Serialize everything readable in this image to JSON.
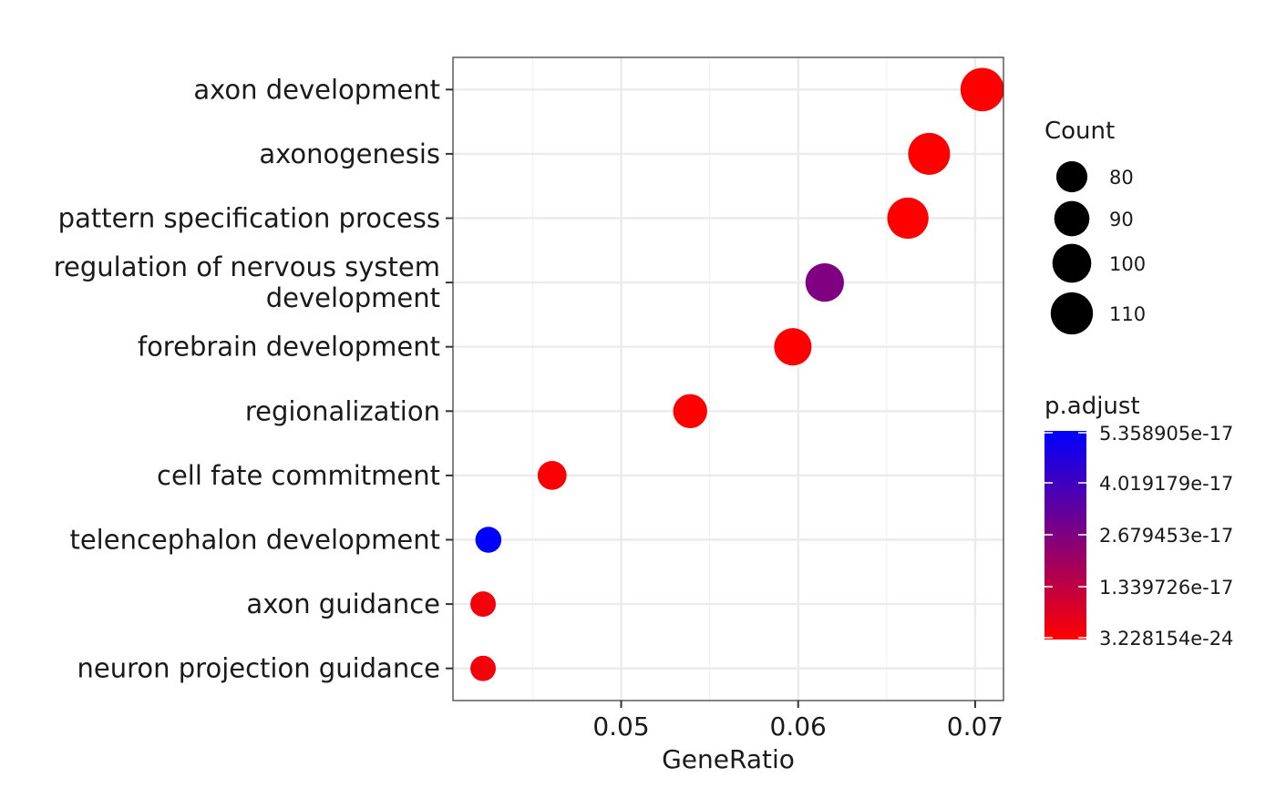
{
  "chart_data": {
    "type": "scatter",
    "title": "",
    "xlabel": "GeneRatio",
    "ylabel": "",
    "xlim": [
      0.0405,
      0.0716
    ],
    "xticks": [
      0.05,
      0.06,
      0.07
    ],
    "xtick_labels": [
      "0.05",
      "0.06",
      "0.07"
    ],
    "grid": true,
    "categories": [
      [
        "axon development"
      ],
      [
        "axonogenesis"
      ],
      [
        "pattern specification process"
      ],
      [
        "regulation of nervous system",
        "development"
      ],
      [
        "forebrain development"
      ],
      [
        "regionalization"
      ],
      [
        "cell fate commitment"
      ],
      [
        "telencephalon development"
      ],
      [
        "axon guidance"
      ],
      [
        "neuron projection guidance"
      ]
    ],
    "points": [
      {
        "x": 0.0704,
        "count": 114,
        "p_adjust": 3.2e-24
      },
      {
        "x": 0.0674,
        "count": 109,
        "p_adjust": 3.2e-24
      },
      {
        "x": 0.0662,
        "count": 107,
        "p_adjust": 3.2e-24
      },
      {
        "x": 0.0615,
        "count": 99,
        "p_adjust": 2.7e-17
      },
      {
        "x": 0.0597,
        "count": 96,
        "p_adjust": 3.2e-24
      },
      {
        "x": 0.0539,
        "count": 87,
        "p_adjust": 3.2e-24
      },
      {
        "x": 0.0461,
        "count": 75,
        "p_adjust": 1e-18
      },
      {
        "x": 0.0425,
        "count": 69,
        "p_adjust": 5.358905e-17
      },
      {
        "x": 0.0422,
        "count": 68,
        "p_adjust": 2e-18
      },
      {
        "x": 0.0422,
        "count": 68,
        "p_adjust": 2e-18
      }
    ],
    "size_legend": {
      "title": "Count",
      "values": [
        80,
        90,
        100,
        110
      ],
      "labels": [
        "80",
        "90",
        "100",
        "110"
      ]
    },
    "color_legend": {
      "title": "p.adjust",
      "min": 3.228154e-24,
      "max": 5.358905e-17,
      "low_color": "#ff0000",
      "high_color": "#0000ff",
      "ticks": [
        5.358905e-17,
        4.019179e-17,
        2.679453e-17,
        1.339726e-17,
        3.228154e-24
      ],
      "tick_labels": [
        "5.358905e-17",
        "4.019179e-17",
        "2.679453e-17",
        "1.339726e-17",
        "3.228154e-24"
      ]
    }
  }
}
